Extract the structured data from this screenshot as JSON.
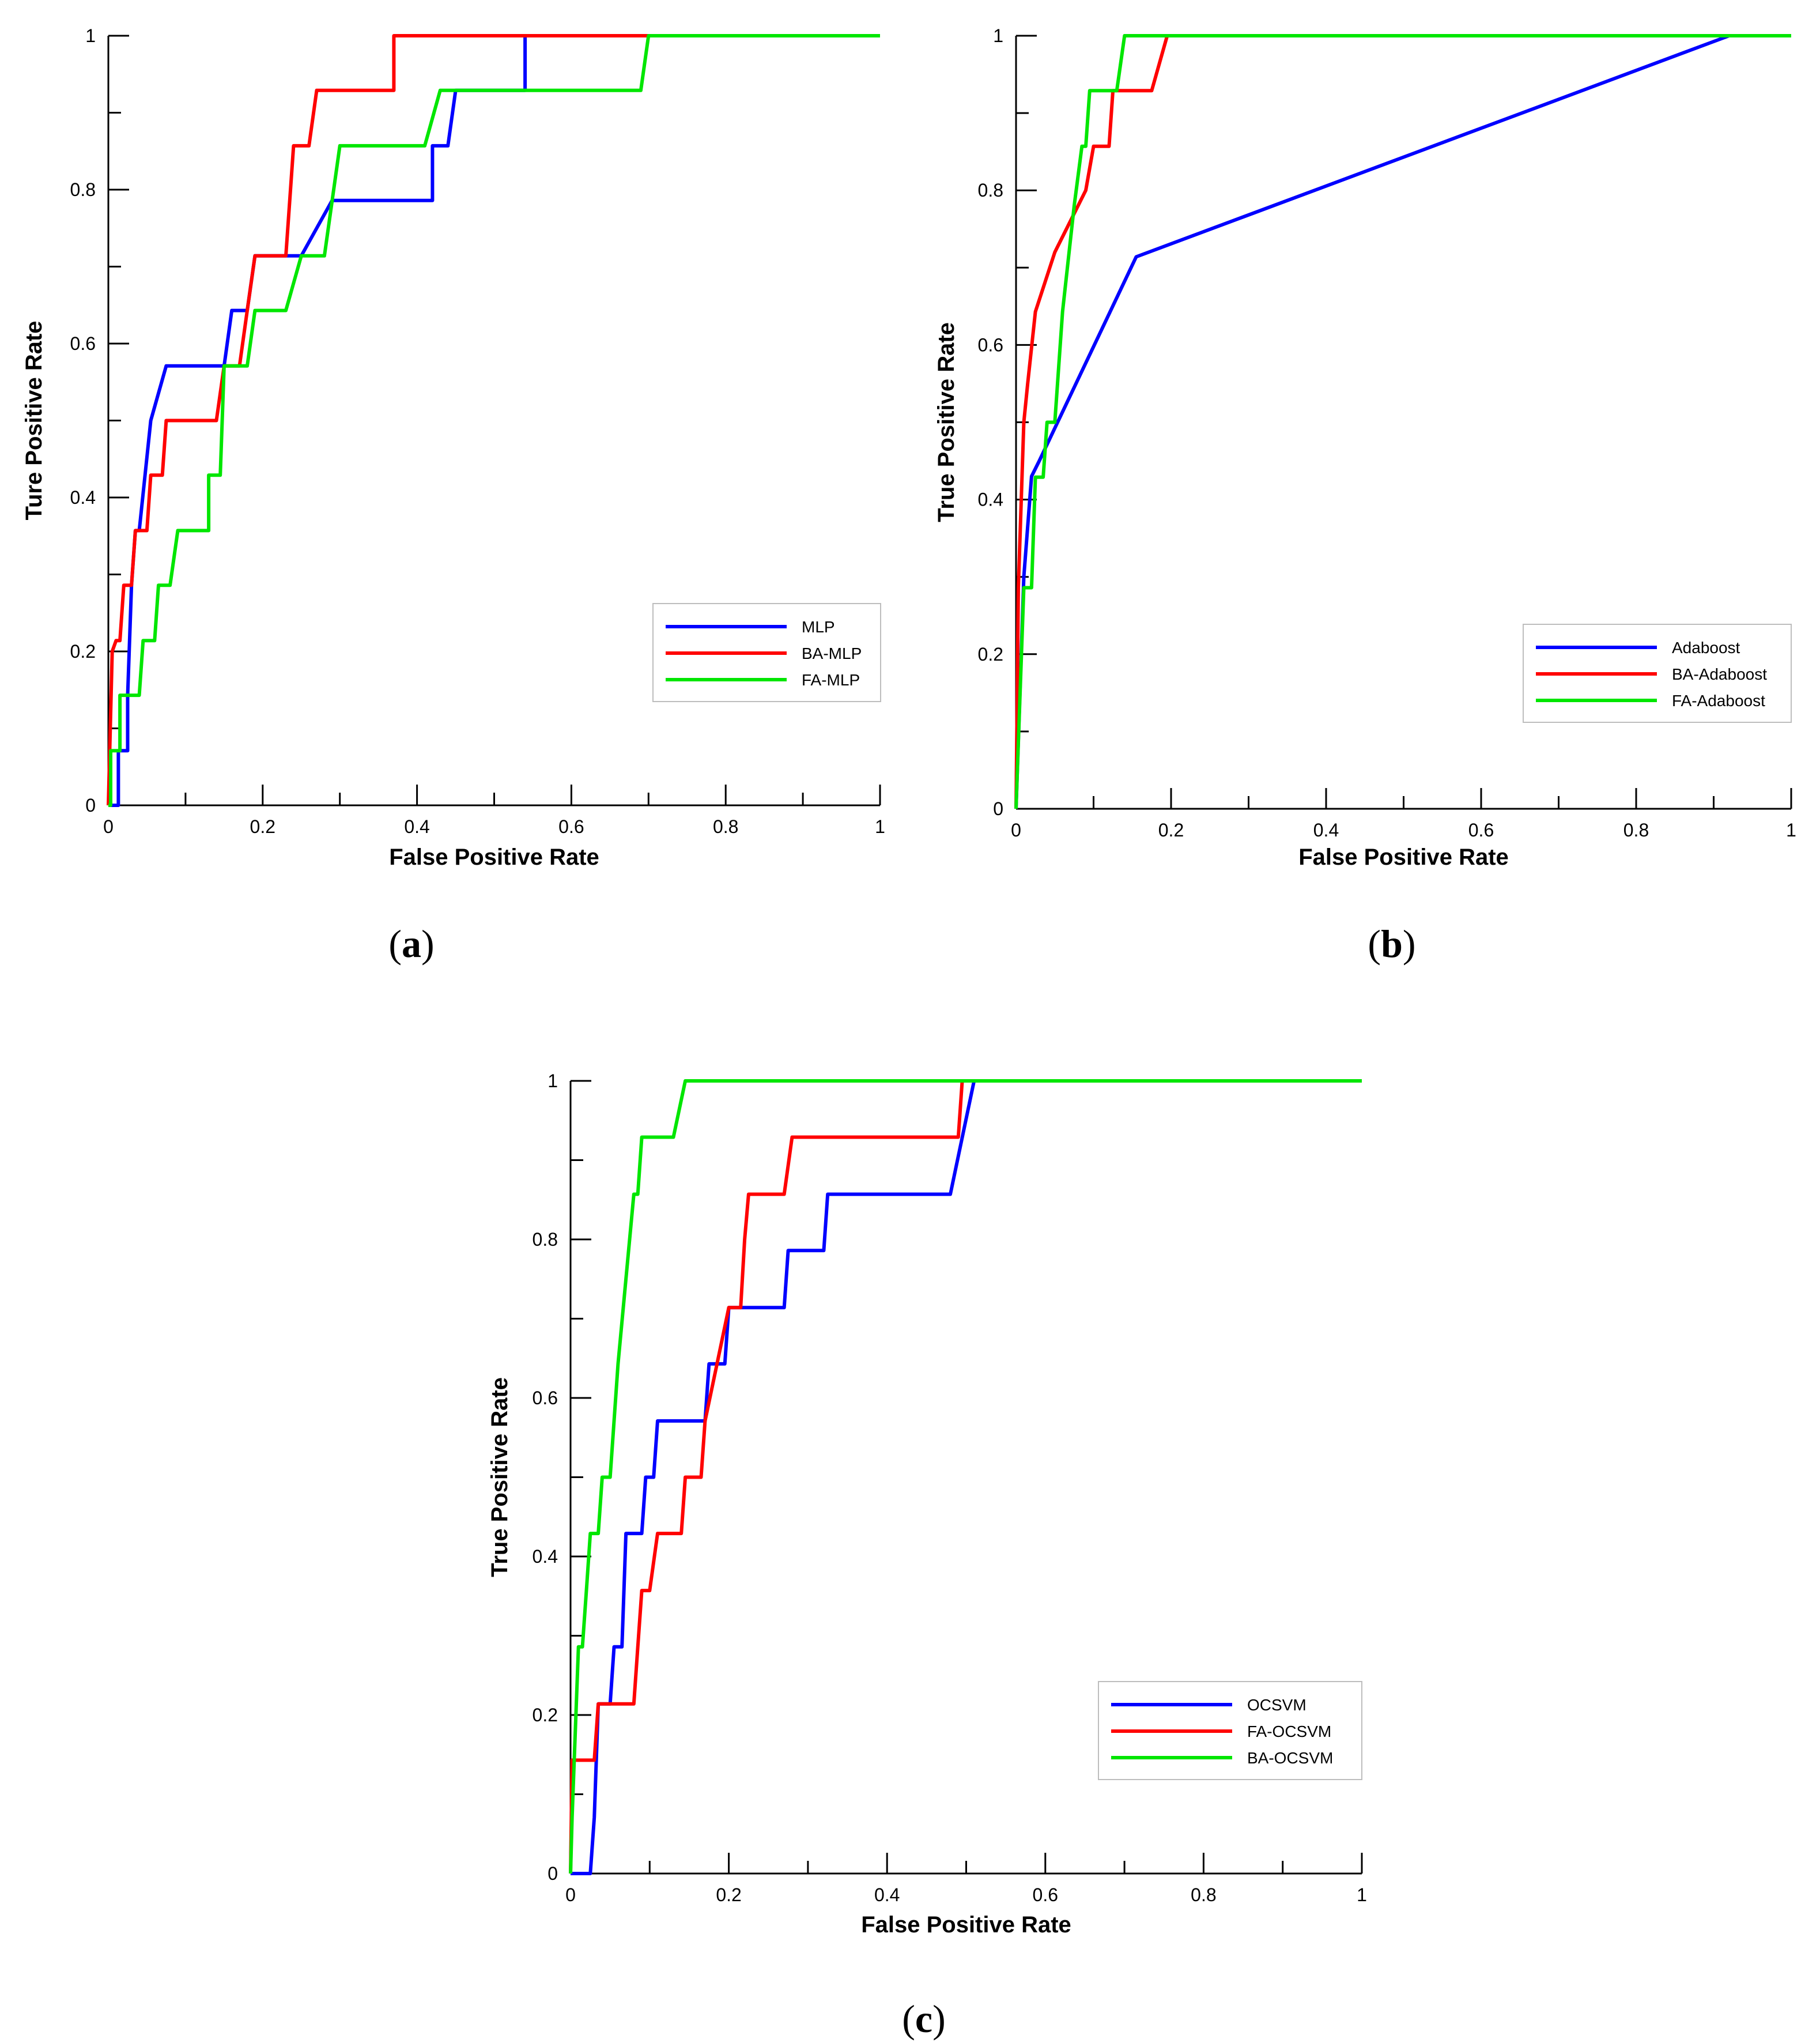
{
  "chart_data": [
    {
      "type": "line",
      "panel_label": "a",
      "xlabel": "False Positive Rate",
      "ylabel": "Ture Positive Rate",
      "xlim": [
        0,
        1
      ],
      "ylim": [
        0,
        1
      ],
      "xticks": [
        "0",
        "0.2",
        "0.4",
        "0.6",
        "0.8",
        "1"
      ],
      "yticks": [
        "0",
        "0.2",
        "0.4",
        "0.6",
        "0.8",
        "1"
      ],
      "grid": false,
      "legend_position": "lower-right",
      "series": [
        {
          "name": "MLP",
          "color": "#0000ff",
          "x": [
            0,
            0.013,
            0.013,
            0.025,
            0.025,
            0.03,
            0.035,
            0.04,
            0.055,
            0.055,
            0.075,
            0.08,
            0.15,
            0.16,
            0.18,
            0.19,
            0.2,
            0.25,
            0.29,
            0.29,
            0.42,
            0.42,
            0.44,
            0.45,
            0.54,
            0.54,
            0.7,
            1
          ],
          "y": [
            0,
            0,
            0.071,
            0.071,
            0.143,
            0.286,
            0.357,
            0.357,
            0.5,
            0.5,
            0.571,
            0.571,
            0.571,
            0.643,
            0.643,
            0.714,
            0.714,
            0.714,
            0.786,
            0.786,
            0.786,
            0.857,
            0.857,
            0.929,
            0.929,
            1,
            1,
            1
          ]
        },
        {
          "name": "BA-MLP",
          "color": "#ff0000",
          "x": [
            0,
            0.005,
            0.01,
            0.015,
            0.02,
            0.03,
            0.035,
            0.05,
            0.055,
            0.07,
            0.075,
            0.14,
            0.15,
            0.17,
            0.18,
            0.19,
            0.23,
            0.24,
            0.26,
            0.27,
            0.37,
            0.37,
            0.69,
            0.69,
            1
          ],
          "y": [
            0,
            0.2,
            0.214,
            0.214,
            0.286,
            0.286,
            0.357,
            0.357,
            0.429,
            0.429,
            0.5,
            0.5,
            0.571,
            0.571,
            0.643,
            0.714,
            0.714,
            0.857,
            0.857,
            0.929,
            0.929,
            1,
            1,
            1,
            1
          ]
        },
        {
          "name": "FA-MLP",
          "color": "#00e600",
          "x": [
            0,
            0.003,
            0.003,
            0.015,
            0.015,
            0.04,
            0.045,
            0.06,
            0.065,
            0.08,
            0.09,
            0.13,
            0.13,
            0.145,
            0.15,
            0.18,
            0.19,
            0.23,
            0.25,
            0.28,
            0.3,
            0.41,
            0.43,
            0.69,
            0.7,
            1
          ],
          "y": [
            0,
            0,
            0.071,
            0.071,
            0.143,
            0.143,
            0.214,
            0.214,
            0.286,
            0.286,
            0.357,
            0.357,
            0.429,
            0.429,
            0.571,
            0.571,
            0.643,
            0.643,
            0.714,
            0.714,
            0.857,
            0.857,
            0.929,
            0.929,
            1,
            1
          ]
        }
      ]
    },
    {
      "type": "line",
      "panel_label": "b",
      "xlabel": "False Positive Rate",
      "ylabel": "True Positive Rate",
      "xlim": [
        0,
        1
      ],
      "ylim": [
        0,
        1
      ],
      "xticks": [
        "0",
        "0.2",
        "0.4",
        "0.6",
        "0.8",
        "1"
      ],
      "yticks": [
        "0",
        "0.2",
        "0.4",
        "0.6",
        "0.8",
        "1"
      ],
      "grid": false,
      "legend_position": "lower-right",
      "series": [
        {
          "name": "Adaboost",
          "color": "#0000ff",
          "x": [
            0,
            0.01,
            0.02,
            0.03,
            0.155,
            0.92,
            1
          ],
          "y": [
            0,
            0.3,
            0.43,
            0.45,
            0.714,
            1,
            1
          ]
        },
        {
          "name": "BA-Adaboost",
          "color": "#ff0000",
          "x": [
            0,
            0.003,
            0.01,
            0.015,
            0.025,
            0.05,
            0.09,
            0.1,
            0.12,
            0.125,
            0.175,
            0.195,
            1
          ],
          "y": [
            0,
            0.286,
            0.5,
            0.55,
            0.643,
            0.72,
            0.8,
            0.857,
            0.857,
            0.929,
            0.929,
            1,
            1
          ]
        },
        {
          "name": "FA-Adaboost",
          "color": "#00e600",
          "x": [
            0,
            0.005,
            0.01,
            0.02,
            0.025,
            0.035,
            0.04,
            0.05,
            0.06,
            0.075,
            0.085,
            0.09,
            0.095,
            0.11,
            0.13,
            0.14,
            0.145,
            1
          ],
          "y": [
            0,
            0.143,
            0.286,
            0.286,
            0.429,
            0.429,
            0.5,
            0.5,
            0.643,
            0.78,
            0.857,
            0.857,
            0.929,
            0.929,
            0.929,
            1,
            1,
            1
          ]
        }
      ]
    },
    {
      "type": "line",
      "panel_label": "c",
      "xlabel": "False Positive Rate",
      "ylabel": "True Positive Rate",
      "xlim": [
        0,
        1
      ],
      "ylim": [
        0,
        1
      ],
      "xticks": [
        "0",
        "0.2",
        "0.4",
        "0.6",
        "0.8",
        "1"
      ],
      "yticks": [
        "0",
        "0.2",
        "0.4",
        "0.6",
        "0.8",
        "1"
      ],
      "grid": false,
      "legend_position": "lower-right",
      "series": [
        {
          "name": "OCSVM",
          "color": "#0000ff",
          "x": [
            0,
            0.025,
            0.03,
            0.035,
            0.05,
            0.055,
            0.065,
            0.07,
            0.09,
            0.095,
            0.105,
            0.11,
            0.17,
            0.175,
            0.195,
            0.2,
            0.27,
            0.275,
            0.32,
            0.325,
            0.48,
            0.51,
            1
          ],
          "y": [
            0,
            0,
            0.071,
            0.214,
            0.214,
            0.286,
            0.286,
            0.429,
            0.429,
            0.5,
            0.5,
            0.571,
            0.571,
            0.643,
            0.643,
            0.714,
            0.714,
            0.786,
            0.786,
            0.857,
            0.857,
            1,
            1
          ]
        },
        {
          "name": "FA-OCSVM",
          "color": "#ff0000",
          "x": [
            0,
            0.002,
            0.03,
            0.035,
            0.08,
            0.085,
            0.09,
            0.1,
            0.11,
            0.14,
            0.145,
            0.165,
            0.17,
            0.2,
            0.215,
            0.22,
            0.225,
            0.27,
            0.28,
            0.49,
            0.495,
            1
          ],
          "y": [
            0,
            0.143,
            0.143,
            0.214,
            0.214,
            0.286,
            0.357,
            0.357,
            0.429,
            0.429,
            0.5,
            0.5,
            0.571,
            0.714,
            0.714,
            0.8,
            0.857,
            0.857,
            0.929,
            0.929,
            1,
            1
          ]
        },
        {
          "name": "BA-OCSVM",
          "color": "#00e600",
          "x": [
            0,
            0.002,
            0.01,
            0.015,
            0.02,
            0.025,
            0.035,
            0.04,
            0.045,
            0.05,
            0.055,
            0.06,
            0.08,
            0.085,
            0.09,
            0.095,
            0.13,
            0.145,
            1
          ],
          "y": [
            0,
            0.071,
            0.286,
            0.286,
            0.357,
            0.429,
            0.429,
            0.5,
            0.5,
            0.5,
            0.571,
            0.643,
            0.857,
            0.857,
            0.929,
            0.929,
            0.929,
            1,
            1
          ]
        }
      ]
    }
  ]
}
